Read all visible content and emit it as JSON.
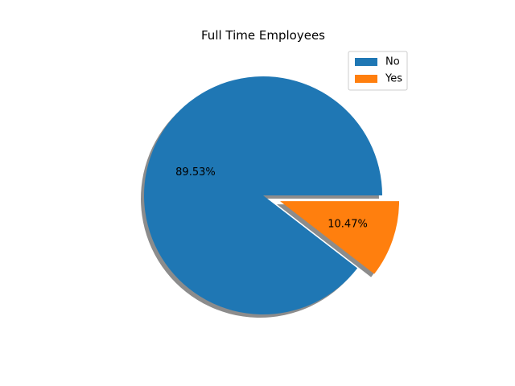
{
  "chart_data": {
    "type": "pie",
    "title": "Full Time Employees",
    "slices": [
      {
        "label": "No",
        "value": 89.53,
        "display": "89.53%",
        "color": "#1f77b4",
        "exploded": false
      },
      {
        "label": "Yes",
        "value": 10.47,
        "display": "10.47%",
        "color": "#ff7f0e",
        "exploded": true
      }
    ],
    "shadow": true,
    "start_angle_deg": 0,
    "direction": "counterclockwise",
    "legend": {
      "position": "top-right",
      "entries": [
        "No",
        "Yes"
      ]
    }
  }
}
